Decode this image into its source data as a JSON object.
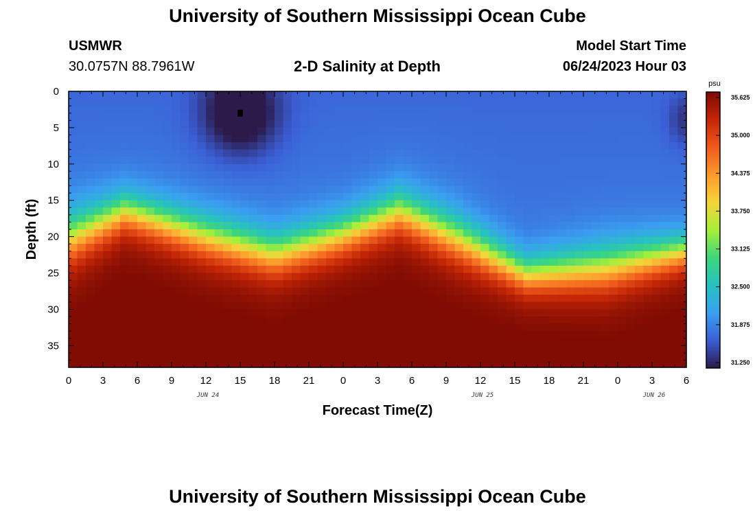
{
  "header": {
    "title": "University of Southern Mississippi Ocean Cube",
    "station": "USMWR",
    "coords": "30.0757N  88.7961W",
    "plot_title": "2-D Salinity at Depth",
    "model_start_label": "Model Start Time",
    "model_start_value": "06/24/2023 Hour 03"
  },
  "footer": {
    "title": "University of Southern Mississippi Ocean Cube"
  },
  "chart_data": {
    "type": "heatmap",
    "title": "2-D Salinity at Depth",
    "xlabel": "Forecast Time(Z)",
    "ylabel": "Depth (ft)",
    "x_range_hours": [
      0,
      54
    ],
    "x_ticks": [
      {
        "h": 0,
        "label": "0"
      },
      {
        "h": 3,
        "label": "3"
      },
      {
        "h": 6,
        "label": "6"
      },
      {
        "h": 9,
        "label": "9"
      },
      {
        "h": 12,
        "label": "12"
      },
      {
        "h": 15,
        "label": "15"
      },
      {
        "h": 18,
        "label": "18"
      },
      {
        "h": 21,
        "label": "21"
      },
      {
        "h": 24,
        "label": "0"
      },
      {
        "h": 27,
        "label": "3"
      },
      {
        "h": 30,
        "label": "6"
      },
      {
        "h": 33,
        "label": "9"
      },
      {
        "h": 36,
        "label": "12"
      },
      {
        "h": 39,
        "label": "15"
      },
      {
        "h": 42,
        "label": "18"
      },
      {
        "h": 45,
        "label": "21"
      },
      {
        "h": 48,
        "label": "0"
      },
      {
        "h": 51,
        "label": "3"
      },
      {
        "h": 54,
        "label": "6"
      }
    ],
    "day_labels": [
      {
        "h": 12,
        "label": "JUN 24"
      },
      {
        "h": 36,
        "label": "JUN 25"
      },
      {
        "h": 51,
        "label": "JUN 26"
      }
    ],
    "y_range_ft": [
      0,
      38
    ],
    "y_ticks": [
      0,
      5,
      10,
      15,
      20,
      25,
      30,
      35
    ],
    "colorbar": {
      "unit": "psu",
      "min": 31.25,
      "max": 35.625,
      "tick_labels": [
        "35.625",
        "35.000",
        "34.375",
        "33.750",
        "33.125",
        "32.500",
        "31.875",
        "31.250"
      ],
      "colors": [
        "#2b1a4a",
        "#3b5fd6",
        "#3a9ff0",
        "#27c2c0",
        "#3ed67a",
        "#a6ef3a",
        "#f4d43a",
        "#fd9a2e",
        "#ef5a1c",
        "#c42606",
        "#7d0a03"
      ]
    },
    "halocline": [
      {
        "h": 0,
        "top": 14.5,
        "bottom": 26
      },
      {
        "h": 5,
        "top": 12,
        "bottom": 21
      },
      {
        "h": 12,
        "top": 15,
        "bottom": 25
      },
      {
        "h": 18,
        "top": 17.5,
        "bottom": 27.5
      },
      {
        "h": 24,
        "top": 15,
        "bottom": 24.5
      },
      {
        "h": 29,
        "top": 11.5,
        "bottom": 21.5
      },
      {
        "h": 34,
        "top": 15,
        "bottom": 25.5
      },
      {
        "h": 40,
        "top": 21,
        "bottom": 29.5
      },
      {
        "h": 47,
        "top": 19,
        "bottom": 29.5
      },
      {
        "h": 54,
        "top": 18,
        "bottom": 26
      }
    ],
    "low_salinity_center": {
      "h": 15,
      "depth_ft": 3,
      "value": 31.25
    },
    "surface_value": 31.85,
    "bottom_value": 35.6
  }
}
